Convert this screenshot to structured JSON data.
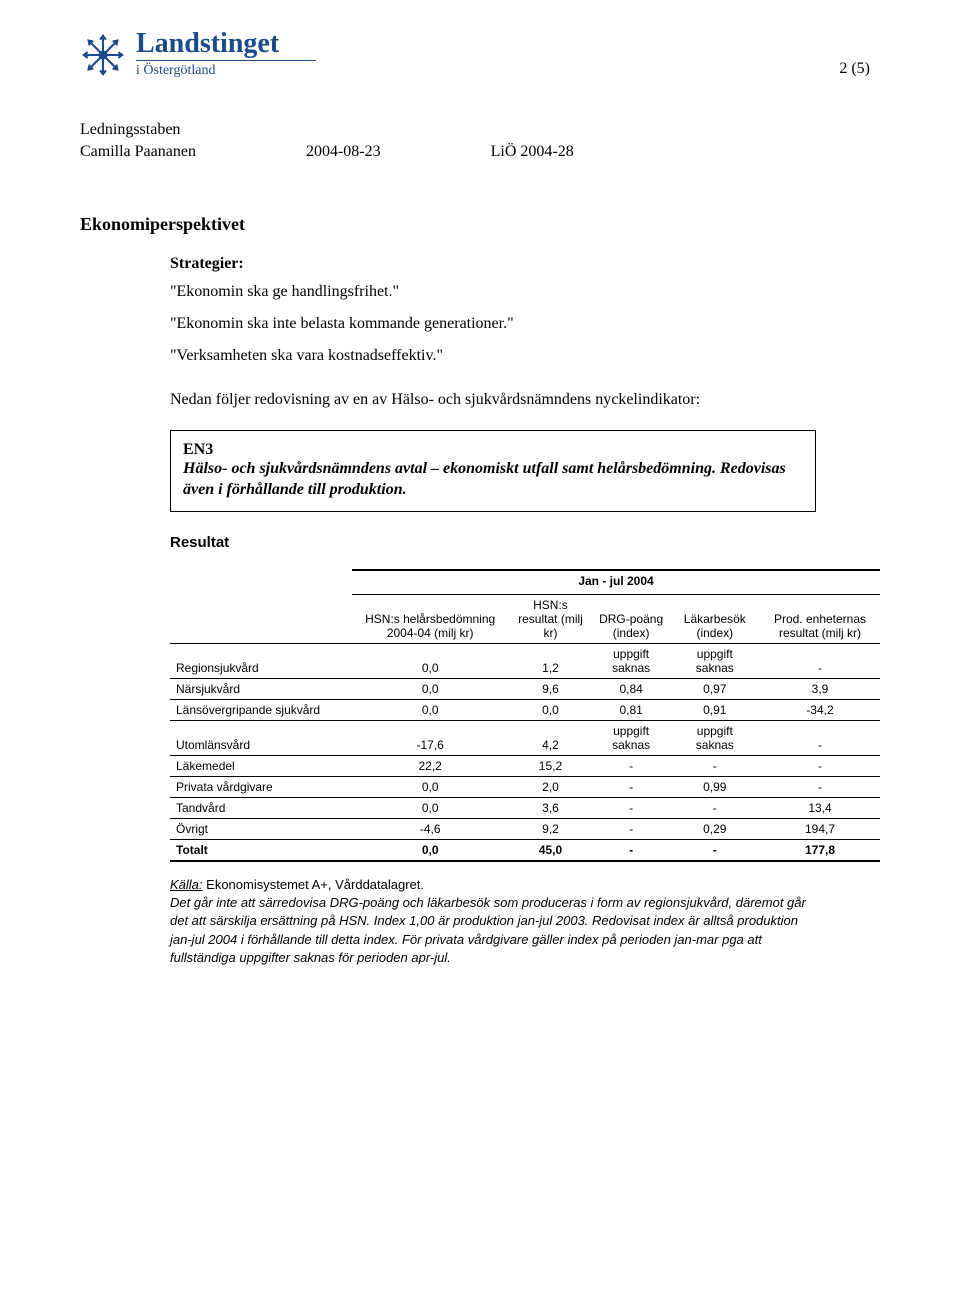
{
  "page_number": "2 (5)",
  "org": {
    "name": "Landstinget",
    "sub": "i Östergötland",
    "logo_color": "#1b4b8a"
  },
  "header": {
    "dept": "Ledningsstaben",
    "author": "Camilla Paananen",
    "date": "2004-08-23",
    "ref": "LiÖ 2004-28"
  },
  "section_title": "Ekonomiperspektivet",
  "strategies_title": "Strategier:",
  "strategies": [
    "\"Ekonomin ska ge handlingsfrihet.\"",
    "\"Ekonomin ska inte belasta kommande generationer.\"",
    "\"Verksamheten ska vara kostnadseffektiv.\""
  ],
  "intro_para": "Nedan följer redovisning av en av Hälso- och sjukvårdsnämndens nyckelindikator:",
  "en3_box": {
    "code": "EN3",
    "text": "Hälso- och sjukvårdsnämndens avtal – ekonomiskt utfall samt helårsbedömning. Redovisas även i förhållande till produktion."
  },
  "resultat_label": "Resultat",
  "table": {
    "period": "Jan - jul 2004",
    "columns": [
      "",
      "HSN:s helårsbedömning 2004-04 (milj kr)",
      "HSN:s resultat (milj kr)",
      "DRG-poäng (index)",
      "Läkarbesök (index)",
      "Prod. enheternas resultat (milj kr)"
    ],
    "rows": [
      {
        "label": "Regionsjukvård",
        "c1": "0,0",
        "c2": "1,2",
        "c3": "uppgift saknas",
        "c4": "uppgift saknas",
        "c5": "-"
      },
      {
        "label": "Närsjukvård",
        "c1": "0,0",
        "c2": "9,6",
        "c3": "0,84",
        "c4": "0,97",
        "c5": "3,9"
      },
      {
        "label": "Länsövergripande sjukvård",
        "c1": "0,0",
        "c2": "0,0",
        "c3": "0,81",
        "c4": "0,91",
        "c5": "-34,2"
      },
      {
        "label": "Utomlänsvård",
        "c1": "-17,6",
        "c2": "4,2",
        "c3": "uppgift saknas",
        "c4": "uppgift saknas",
        "c5": "-"
      },
      {
        "label": "Läkemedel",
        "c1": "22,2",
        "c2": "15,2",
        "c3": "-",
        "c4": "-",
        "c5": "-"
      },
      {
        "label": "Privata vårdgivare",
        "c1": "0,0",
        "c2": "2,0",
        "c3": "-",
        "c4": "0,99",
        "c5": "-"
      },
      {
        "label": "Tandvård",
        "c1": "0,0",
        "c2": "3,6",
        "c3": "-",
        "c4": "-",
        "c5": "13,4"
      },
      {
        "label": "Övrigt",
        "c1": "-4,6",
        "c2": "9,2",
        "c3": "-",
        "c4": "0,29",
        "c5": "194,7"
      }
    ],
    "total": {
      "label": "Totalt",
      "c1": "0,0",
      "c2": "45,0",
      "c3": "-",
      "c4": "-",
      "c5": "177,8"
    }
  },
  "footnote": {
    "source_label": "Källa:",
    "source_rest": " Ekonomisystemet A+, Vårddatalagret.",
    "body": "Det går inte att särredovisa DRG-poäng och läkarbesök som produceras i form av regionsjukvård, däremot går det att särskilja ersättning på HSN. Index 1,00 är produktion jan-jul 2003. Redovisat index är alltså produktion jan-jul 2004 i förhållande till detta index. För privata vårdgivare gäller index på perioden jan-mar pga att fullständiga uppgifter saknas för perioden apr-jul."
  }
}
